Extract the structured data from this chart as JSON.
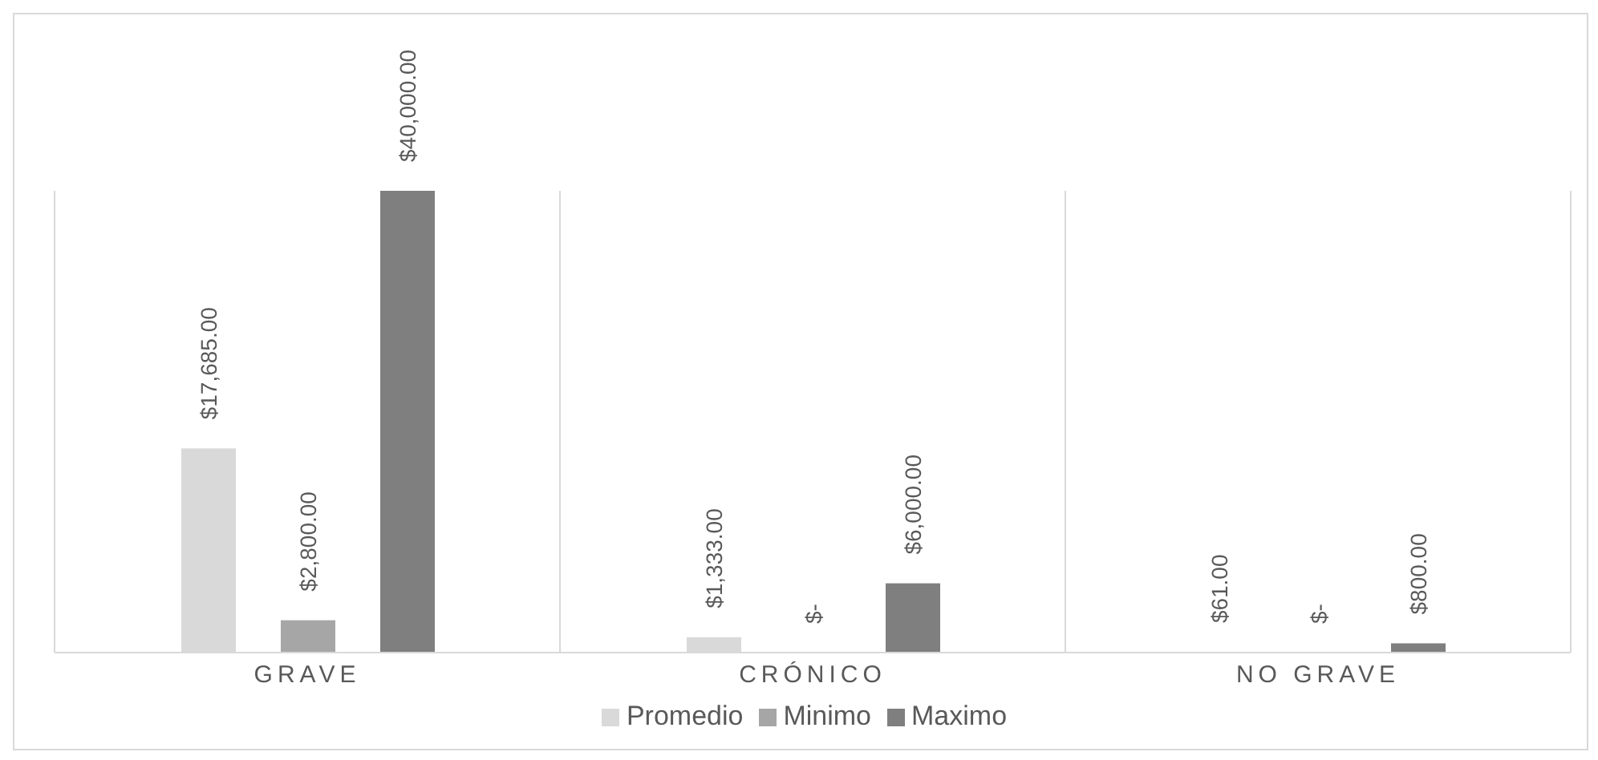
{
  "chart_data": {
    "type": "bar",
    "categories": [
      "GRAVE",
      "CRÓNICO",
      "NO GRAVE"
    ],
    "series": [
      {
        "name": "Promedio",
        "color": "#d9d9d9",
        "values": [
          17685,
          1333,
          61
        ],
        "value_labels": [
          "$17,685.00",
          "$1,333.00",
          "$61.00"
        ]
      },
      {
        "name": "Minimo",
        "color": "#a6a6a6",
        "values": [
          2800,
          0,
          0
        ],
        "value_labels": [
          "$2,800.00",
          "$-",
          "$-"
        ]
      },
      {
        "name": "Maximo",
        "color": "#7f7f7f",
        "values": [
          40000,
          6000,
          800
        ],
        "value_labels": [
          "$40,000.00",
          "$6,000.00",
          "$800.00"
        ]
      }
    ],
    "grid": "x",
    "legend": "bottom"
  }
}
